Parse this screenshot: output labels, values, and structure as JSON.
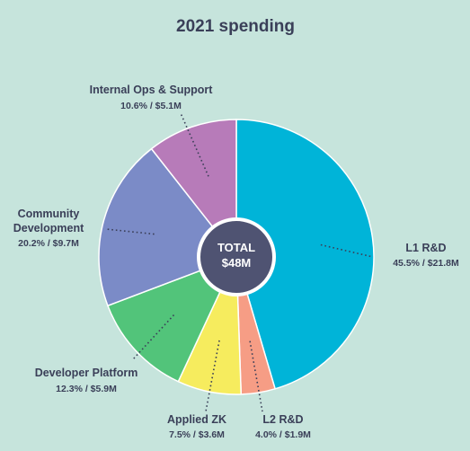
{
  "chart_data": {
    "type": "pie",
    "title": "2021 spending",
    "center_label": {
      "line1": "TOTAL",
      "line2": "$48M"
    },
    "slices": [
      {
        "name": "L1 R&D",
        "percent": 45.5,
        "amount": "$21.8M",
        "value_text": "45.5% / $21.8M",
        "color": "#00b4d8"
      },
      {
        "name": "L2 R&D",
        "percent": 4.0,
        "amount": "$1.9M",
        "value_text": "4.0% / $1.9M",
        "color": "#f69d85"
      },
      {
        "name": "Applied ZK",
        "percent": 7.5,
        "amount": "$3.6M",
        "value_text": "7.5% / $3.6M",
        "color": "#f6ec5e"
      },
      {
        "name": "Developer Platform",
        "percent": 12.3,
        "amount": "$5.9M",
        "value_text": "12.3% / $5.9M",
        "color": "#52c47a"
      },
      {
        "name": "Community Development",
        "name_lines": [
          "Community",
          "Development"
        ],
        "percent": 20.2,
        "amount": "$9.7M",
        "value_text": "20.2% / $9.7M",
        "color": "#7b8bc7"
      },
      {
        "name": "Internal Ops & Support",
        "percent": 10.6,
        "amount": "$5.1M",
        "value_text": "10.6% / $5.1M",
        "color": "#b77bb9"
      }
    ],
    "start_angle": "12 o'clock, clockwise",
    "legend": "none (inline labels)"
  },
  "colors": {
    "background": "#c6e4dc",
    "text": "#3a3f58",
    "center_circle": "#4f5372",
    "slice_border": "#ffffff"
  }
}
